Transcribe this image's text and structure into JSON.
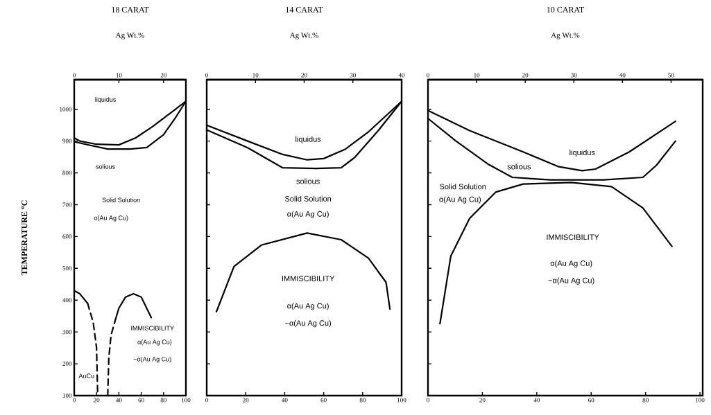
{
  "chart_data": [
    {
      "type": "line",
      "title": "18 CARAT",
      "x2label": "Ag Wt.%",
      "ylabel": "TEMPERATURE $^{o}$C",
      "xlim": [
        0,
        100
      ],
      "xticks": [
        0,
        20,
        40,
        60,
        80,
        100
      ],
      "x2lim": [
        0,
        25
      ],
      "x2ticks": [
        0,
        10,
        20
      ],
      "ylim": [
        100,
        1093
      ],
      "yticks": [
        100,
        200,
        300,
        400,
        500,
        600,
        700,
        800,
        900,
        1000
      ],
      "series": [
        {
          "color": "#000000",
          "line_style": "solid",
          "x": [
            0,
            5,
            20,
            40,
            55,
            70,
            85,
            100
          ],
          "values": [
            910,
            900,
            890,
            888,
            910,
            945,
            985,
            1025
          ]
        },
        {
          "color": "#000000",
          "line_style": "solid",
          "x": [
            0,
            10,
            30,
            50,
            65,
            80,
            90,
            100
          ],
          "values": [
            898,
            890,
            875,
            875,
            880,
            920,
            970,
            1025
          ]
        },
        {
          "color": "#000000",
          "line_style": "solid",
          "x": [
            0,
            5,
            12
          ],
          "values": [
            430,
            420,
            390
          ]
        },
        {
          "color": "#000000",
          "line_style": "dashed",
          "x": [
            12,
            17,
            20,
            21
          ],
          "values": [
            390,
            330,
            250,
            100
          ]
        },
        {
          "color": "#000000",
          "line_style": "dashed",
          "x": [
            30,
            31,
            33,
            37
          ],
          "values": [
            100,
            220,
            290,
            340
          ]
        },
        {
          "color": "#000000",
          "line_style": "solid",
          "x": [
            37,
            40,
            46,
            53,
            60,
            69
          ],
          "values": [
            340,
            375,
            410,
            420,
            410,
            345
          ]
        }
      ],
      "annotations": [
        "liquidus",
        "solious",
        "Solid Solution",
        "α(Au Ag Cu)",
        "IMMISCIBILITY",
        "α(Au Ag Cu)",
        "−α(Au Ag Cu)",
        "AuCu"
      ]
    },
    {
      "type": "line",
      "title": "14 CARAT",
      "x2label": "Ag Wt.%",
      "tick_labels": "x",
      "xlim": [
        0,
        100
      ],
      "xticks": [
        0,
        20,
        40,
        60,
        80,
        100
      ],
      "x2lim": [
        0,
        40
      ],
      "x2ticks": [
        0,
        10,
        20,
        30,
        40
      ],
      "ylim": [
        100,
        1093
      ],
      "yticks": [
        100,
        200,
        300,
        400,
        500,
        600,
        700,
        800,
        900,
        1000
      ],
      "series": [
        {
          "color": "#000000",
          "line_style": "solid",
          "x": [
            0,
            21,
            39,
            51.5,
            60,
            71,
            83,
            100
          ],
          "values": [
            950,
            900,
            858,
            841,
            845,
            874,
            929,
            1025
          ]
        },
        {
          "color": "#000000",
          "line_style": "solid",
          "x": [
            0,
            21,
            39,
            56,
            69,
            76,
            88,
            100
          ],
          "values": [
            935,
            879,
            816,
            814,
            816,
            849,
            933,
            1025
          ]
        },
        {
          "color": "#000000",
          "line_style": "solid",
          "x": [
            5,
            14,
            28,
            51.5,
            69,
            83,
            92,
            94
          ],
          "values": [
            364,
            506,
            573,
            611,
            590,
            532,
            456,
            372
          ]
        }
      ],
      "annotations": [
        "liquidus",
        "solious",
        "Solid Solution",
        "α(Au Ag Cu)",
        "IMMISCIBILITY",
        "α(Au Ag Cu)",
        "−α(Au Ag Cu)"
      ]
    },
    {
      "type": "line",
      "title": "10 CARAT",
      "x2label": "Ag Wt.%",
      "tick_labels": "x",
      "xlim": [
        0,
        101
      ],
      "xticks": [
        0,
        20,
        40,
        60,
        80,
        100
      ],
      "x2lim": [
        0,
        56.5
      ],
      "x2ticks": [
        0,
        10,
        20,
        30,
        40,
        50
      ],
      "ylim": [
        100,
        1093
      ],
      "yticks": [
        100,
        200,
        300,
        400,
        500,
        600,
        700,
        800,
        900,
        1000
      ],
      "series": [
        {
          "color": "#000000",
          "line_style": "solid",
          "x": [
            0,
            15.3,
            35,
            47.8,
            56.7,
            61.6,
            74,
            91
          ],
          "values": [
            996,
            933,
            866,
            820,
            807,
            812,
            866,
            962
          ]
        },
        {
          "color": "#000000",
          "line_style": "solid",
          "x": [
            0,
            10.3,
            22,
            31,
            45,
            64.5,
            79,
            84,
            91
          ],
          "values": [
            971,
            900,
            828,
            786,
            778,
            778,
            786,
            824,
            900
          ]
        },
        {
          "color": "#000000",
          "line_style": "solid",
          "x": [
            4.4,
            8.4,
            15.3,
            25,
            35,
            52.7,
            67.5,
            79,
            89.7
          ],
          "values": [
            326,
            539,
            657,
            740,
            765,
            770,
            757,
            690,
            569
          ]
        }
      ],
      "annotations": [
        "liquidus",
        "solious",
        "Solid Solution",
        "α(Au Ag Cu)",
        "IMMISCIBILITY",
        "α(Au Ag Cu)",
        "−α(Au Ag Cu)"
      ]
    }
  ]
}
